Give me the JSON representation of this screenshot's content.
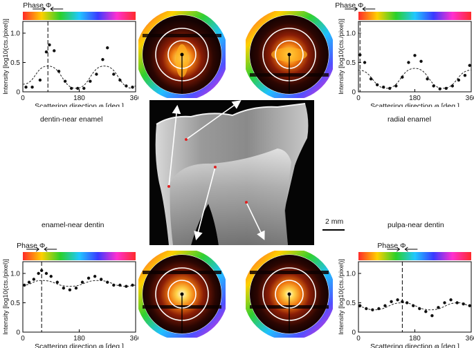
{
  "figure": {
    "scale_bar_label": "2 mm",
    "labels": {
      "top_left": "dentin-near enamel",
      "top_right": "radial enamel",
      "bottom_left": "enamel-near dentin",
      "bottom_right": "pulpa-near dentin"
    }
  },
  "chart_data": [
    {
      "type": "scatter",
      "title": "Phase Φ",
      "xlabel": "Scattering direction φ [deg.]",
      "ylabel": "Intensity [log10(cts./pixel)]",
      "xlim": [
        0,
        360
      ],
      "ylim": [
        0,
        1.2
      ],
      "xticks": [
        "0",
        "180",
        "360"
      ],
      "yticks": [
        "0",
        "0.5",
        "1.0"
      ],
      "phase_deg": 80,
      "x": [
        10,
        30,
        55,
        75,
        85,
        100,
        115,
        135,
        155,
        175,
        195,
        215,
        235,
        255,
        270,
        290,
        310,
        330,
        350
      ],
      "y": [
        0.08,
        0.08,
        0.2,
        0.68,
        0.8,
        0.7,
        0.35,
        0.18,
        0.06,
        0.06,
        0.06,
        0.18,
        0.3,
        0.55,
        0.75,
        0.3,
        0.2,
        0.1,
        0.08
      ],
      "fit": [
        {
          "x": 0,
          "y": 0.13
        },
        {
          "x": 80,
          "y": 0.44
        },
        {
          "x": 170,
          "y": 0.06
        },
        {
          "x": 260,
          "y": 0.44
        },
        {
          "x": 350,
          "y": 0.06
        },
        {
          "x": 360,
          "y": 0.1
        }
      ]
    },
    {
      "type": "scatter",
      "title": "Phase Φ",
      "xlabel": "Scattering direction φ [deg.]",
      "ylabel": "Intensity [log10(cts./pixel)]",
      "xlim": [
        0,
        360
      ],
      "ylim": [
        0,
        1.2
      ],
      "xticks": [
        "0",
        "180",
        "360"
      ],
      "yticks": [
        "0",
        "0.5",
        "1.0"
      ],
      "phase_deg": 5,
      "x": [
        5,
        20,
        40,
        60,
        80,
        100,
        120,
        140,
        160,
        180,
        200,
        220,
        240,
        260,
        280,
        300,
        320,
        340,
        355
      ],
      "y": [
        0.63,
        0.5,
        0.22,
        0.12,
        0.08,
        0.06,
        0.1,
        0.25,
        0.5,
        0.62,
        0.52,
        0.22,
        0.1,
        0.05,
        0.06,
        0.1,
        0.2,
        0.28,
        0.45
      ],
      "fit": [
        {
          "x": 0,
          "y": 0.37
        },
        {
          "x": 90,
          "y": 0.06
        },
        {
          "x": 180,
          "y": 0.4
        },
        {
          "x": 270,
          "y": 0.06
        },
        {
          "x": 360,
          "y": 0.37
        }
      ]
    },
    {
      "type": "scatter",
      "title": "Phase Φ",
      "xlabel": "Scattering direction φ [deg.]",
      "ylabel": "Intensity [log10(cts./pixel)]",
      "xlim": [
        0,
        360
      ],
      "ylim": [
        0,
        1.2
      ],
      "xticks": [
        "0",
        "180",
        "360"
      ],
      "yticks": [
        "0",
        "0.5",
        "1.0"
      ],
      "phase_deg": 60,
      "x": [
        5,
        20,
        35,
        50,
        60,
        75,
        90,
        110,
        130,
        150,
        170,
        190,
        210,
        230,
        250,
        270,
        290,
        310,
        330,
        350
      ],
      "y": [
        0.8,
        0.85,
        0.9,
        1.0,
        1.05,
        1.0,
        0.95,
        0.85,
        0.75,
        0.72,
        0.75,
        0.85,
        0.92,
        0.95,
        0.9,
        0.85,
        0.8,
        0.8,
        0.78,
        0.8
      ],
      "fit": [
        {
          "x": 0,
          "y": 0.8
        },
        {
          "x": 60,
          "y": 0.88
        },
        {
          "x": 150,
          "y": 0.78
        },
        {
          "x": 240,
          "y": 0.88
        },
        {
          "x": 330,
          "y": 0.78
        },
        {
          "x": 360,
          "y": 0.8
        }
      ]
    },
    {
      "type": "scatter",
      "title": "Phase Φ",
      "xlabel": "Scattering direction φ [deg.]",
      "ylabel": "Intensity [log10(cts./pixel)]",
      "xlim": [
        0,
        360
      ],
      "ylim": [
        0,
        1.2
      ],
      "xticks": [
        "0",
        "180",
        "360"
      ],
      "yticks": [
        "0",
        "0.5",
        "1.0"
      ],
      "phase_deg": 140,
      "x": [
        5,
        25,
        45,
        65,
        85,
        105,
        125,
        140,
        155,
        175,
        195,
        215,
        235,
        255,
        275,
        295,
        315,
        335,
        355
      ],
      "y": [
        0.45,
        0.4,
        0.38,
        0.4,
        0.45,
        0.52,
        0.55,
        0.52,
        0.5,
        0.45,
        0.4,
        0.35,
        0.28,
        0.42,
        0.5,
        0.55,
        0.5,
        0.48,
        0.45
      ],
      "fit": [
        {
          "x": 0,
          "y": 0.43
        },
        {
          "x": 50,
          "y": 0.38
        },
        {
          "x": 140,
          "y": 0.5
        },
        {
          "x": 230,
          "y": 0.38
        },
        {
          "x": 320,
          "y": 0.5
        },
        {
          "x": 360,
          "y": 0.45
        }
      ]
    }
  ]
}
